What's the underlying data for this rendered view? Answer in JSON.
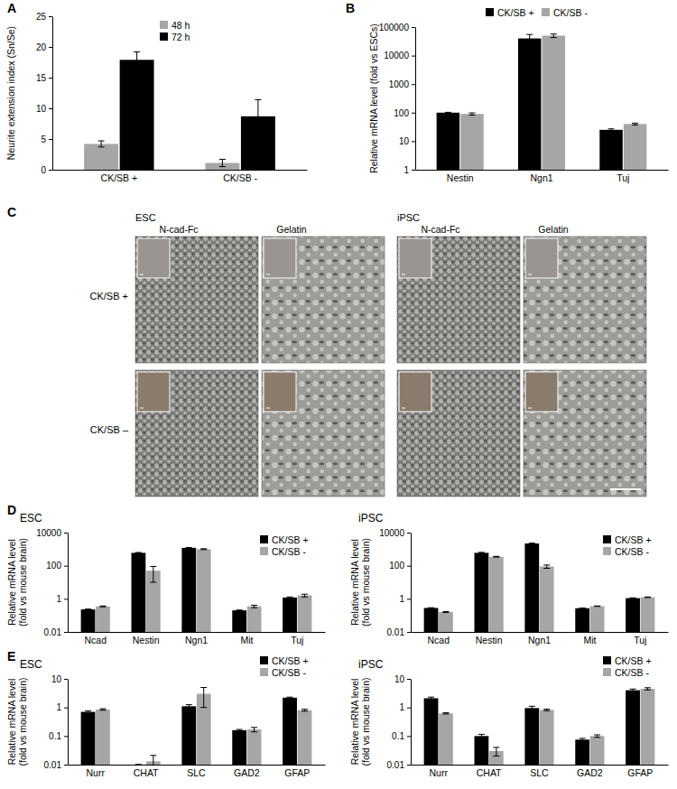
{
  "panel_labels": [
    "A",
    "B",
    "C",
    "D",
    "E"
  ],
  "panel_c": {
    "groups": [
      "ESC",
      "iPSC"
    ],
    "columns": [
      "N-cad-Fc",
      "Gelatin"
    ],
    "rows": [
      "CK/SB +",
      "CK/SB –"
    ]
  },
  "chart_data": [
    {
      "type": "bar",
      "ylabel": [
        "Neurite extension index (Sn/Se)"
      ],
      "categories": [
        "CK/SB +",
        "CK/SB -"
      ],
      "series": [
        {
          "name": "48 h",
          "color": "#a6a6a6",
          "values": [
            4.2,
            1.1
          ],
          "errors": [
            0.5,
            0.6
          ]
        },
        {
          "name": "72 h",
          "color": "#000000",
          "values": [
            17.9,
            8.7
          ],
          "errors": [
            1.3,
            2.7
          ]
        }
      ],
      "ylim": [
        0,
        25
      ],
      "yticks": [
        0,
        5,
        10,
        15,
        20,
        25
      ],
      "legend": "upper center"
    },
    {
      "type": "bar",
      "ylabel": [
        "Relative mRNA level (fold vs ESCs)"
      ],
      "categories": [
        "Nestin",
        "Ngn1",
        "Tuj"
      ],
      "series": [
        {
          "name": "CK/SB +",
          "color": "#000000",
          "values": [
            100,
            40000,
            25
          ],
          "errors": [
            3,
            15000,
            2
          ]
        },
        {
          "name": "CK/SB -",
          "color": "#a6a6a6",
          "values": [
            90,
            50000,
            40
          ],
          "errors": [
            8,
            7000,
            3
          ]
        }
      ],
      "ylim": [
        1,
        100000
      ],
      "yticks": [
        1,
        10,
        100,
        1000,
        10000,
        100000
      ],
      "log": "y",
      "legend": "upper center"
    },
    {
      "type": "bar",
      "title": "ESC",
      "ylabel": [
        "Relative mRNA level",
        "(fold vs mouse brain)"
      ],
      "categories": [
        "Ncad",
        "Nestin",
        "Ngn1",
        "Mit",
        "Tuj"
      ],
      "series": [
        {
          "name": "CK/SB +",
          "color": "#000000",
          "values": [
            0.23,
            600,
            1200,
            0.2,
            1.2
          ],
          "errors": [
            0.01,
            30,
            60,
            0.01,
            0.1
          ]
        },
        {
          "name": "CK/SB -",
          "color": "#a6a6a6",
          "values": [
            0.35,
            50,
            1000,
            0.35,
            1.6
          ],
          "errors": [
            0.02,
            40,
            60,
            0.06,
            0.3
          ]
        }
      ],
      "ylim": [
        0.01,
        10000
      ],
      "yticks": [
        0.01,
        1,
        100,
        10000
      ],
      "log": "y",
      "legend": "upper right"
    },
    {
      "type": "bar",
      "title": "iPSC",
      "ylabel": [
        "Relative mRNA level",
        "(fold vs mouse brain)"
      ],
      "categories": [
        "Ncad",
        "Nestin",
        "Ngn1",
        "Mit",
        "Tuj"
      ],
      "series": [
        {
          "name": "CK/SB +",
          "color": "#000000",
          "values": [
            0.28,
            600,
            2200,
            0.27,
            1.1
          ],
          "errors": [
            0.01,
            40,
            100,
            0.01,
            0.05
          ]
        },
        {
          "name": "CK/SB -",
          "color": "#a6a6a6",
          "values": [
            0.16,
            350,
            90,
            0.36,
            1.25
          ],
          "errors": [
            0.01,
            20,
            20,
            0.01,
            0.05
          ]
        }
      ],
      "ylim": [
        0.01,
        10000
      ],
      "yticks": [
        0.01,
        1,
        100,
        10000
      ],
      "log": "y",
      "legend": "upper right"
    },
    {
      "type": "bar",
      "title": "ESC",
      "ylabel": [
        "Relative mRNA level",
        "(fold vs mouse brain)"
      ],
      "categories": [
        "Nurr",
        "CHAT",
        "SLC",
        "GAD2",
        "GFAP"
      ],
      "series": [
        {
          "name": "CK/SB +",
          "color": "#000000",
          "values": [
            0.7,
            0.01,
            1.1,
            0.16,
            2.2
          ],
          "errors": [
            0.06,
            0,
            0.15,
            0.01,
            0.1
          ]
        },
        {
          "name": "CK/SB -",
          "color": "#a6a6a6",
          "values": [
            0.85,
            0.013,
            3,
            0.17,
            0.8
          ],
          "errors": [
            0.05,
            0.008,
            2,
            0.03,
            0.06
          ]
        }
      ],
      "ylim": [
        0.01,
        10
      ],
      "yticks": [
        0.01,
        0.1,
        1,
        10
      ],
      "log": "y",
      "legend": "upper right"
    },
    {
      "type": "bar",
      "title": "iPSC",
      "ylabel": [
        "Relative mRNA level",
        "(fold vs mouse brain)"
      ],
      "categories": [
        "Nurr",
        "CHAT",
        "SLC",
        "GAD2",
        "GFAP"
      ],
      "series": [
        {
          "name": "CK/SB +",
          "color": "#000000",
          "values": [
            2.1,
            0.1,
            0.95,
            0.075,
            4
          ],
          "errors": [
            0.2,
            0.015,
            0.15,
            0.008,
            0.4
          ]
        },
        {
          "name": "CK/SB -",
          "color": "#a6a6a6",
          "values": [
            0.62,
            0.03,
            0.82,
            0.1,
            4.5
          ],
          "errors": [
            0.03,
            0.01,
            0.05,
            0.01,
            0.4
          ]
        }
      ],
      "ylim": [
        0.01,
        10
      ],
      "yticks": [
        0.01,
        0.1,
        1,
        10
      ],
      "log": "y",
      "legend": "upper right"
    }
  ]
}
